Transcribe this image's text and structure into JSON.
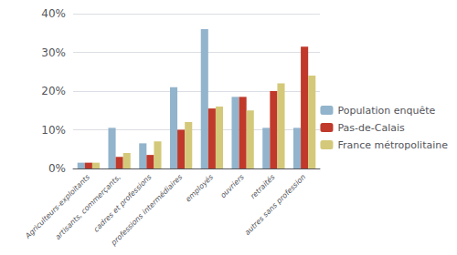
{
  "chart_data": {
    "type": "bar",
    "categories": [
      "Agriculteurs-exploitants",
      "artisants, commerçants,",
      "cadres et professions",
      "professions intermédiaires",
      "employés",
      "ouvriers",
      "retraités",
      "autres sans profession"
    ],
    "series": [
      {
        "name": "Population enquête",
        "color": "#92b4cc",
        "values": [
          1.5,
          10.5,
          6.5,
          21.0,
          36.0,
          18.5,
          10.5,
          10.5
        ]
      },
      {
        "name": "Pas-de-Calais",
        "color": "#c0392b",
        "values": [
          1.5,
          3.0,
          3.5,
          10.0,
          15.5,
          18.5,
          20.0,
          31.5
        ]
      },
      {
        "name": "France métropolitaine",
        "color": "#d4c97a",
        "values": [
          1.5,
          4.0,
          7.0,
          12.0,
          16.0,
          15.0,
          22.0,
          24.0
        ]
      }
    ],
    "ylim": [
      0,
      40
    ],
    "yticks": [
      {
        "value": 0,
        "label": "0%"
      },
      {
        "value": 10,
        "label": "10%"
      },
      {
        "value": 20,
        "label": "20%"
      },
      {
        "value": 30,
        "label": "30%"
      },
      {
        "value": 40,
        "label": "40%"
      }
    ],
    "grid": true,
    "legend": "right"
  }
}
